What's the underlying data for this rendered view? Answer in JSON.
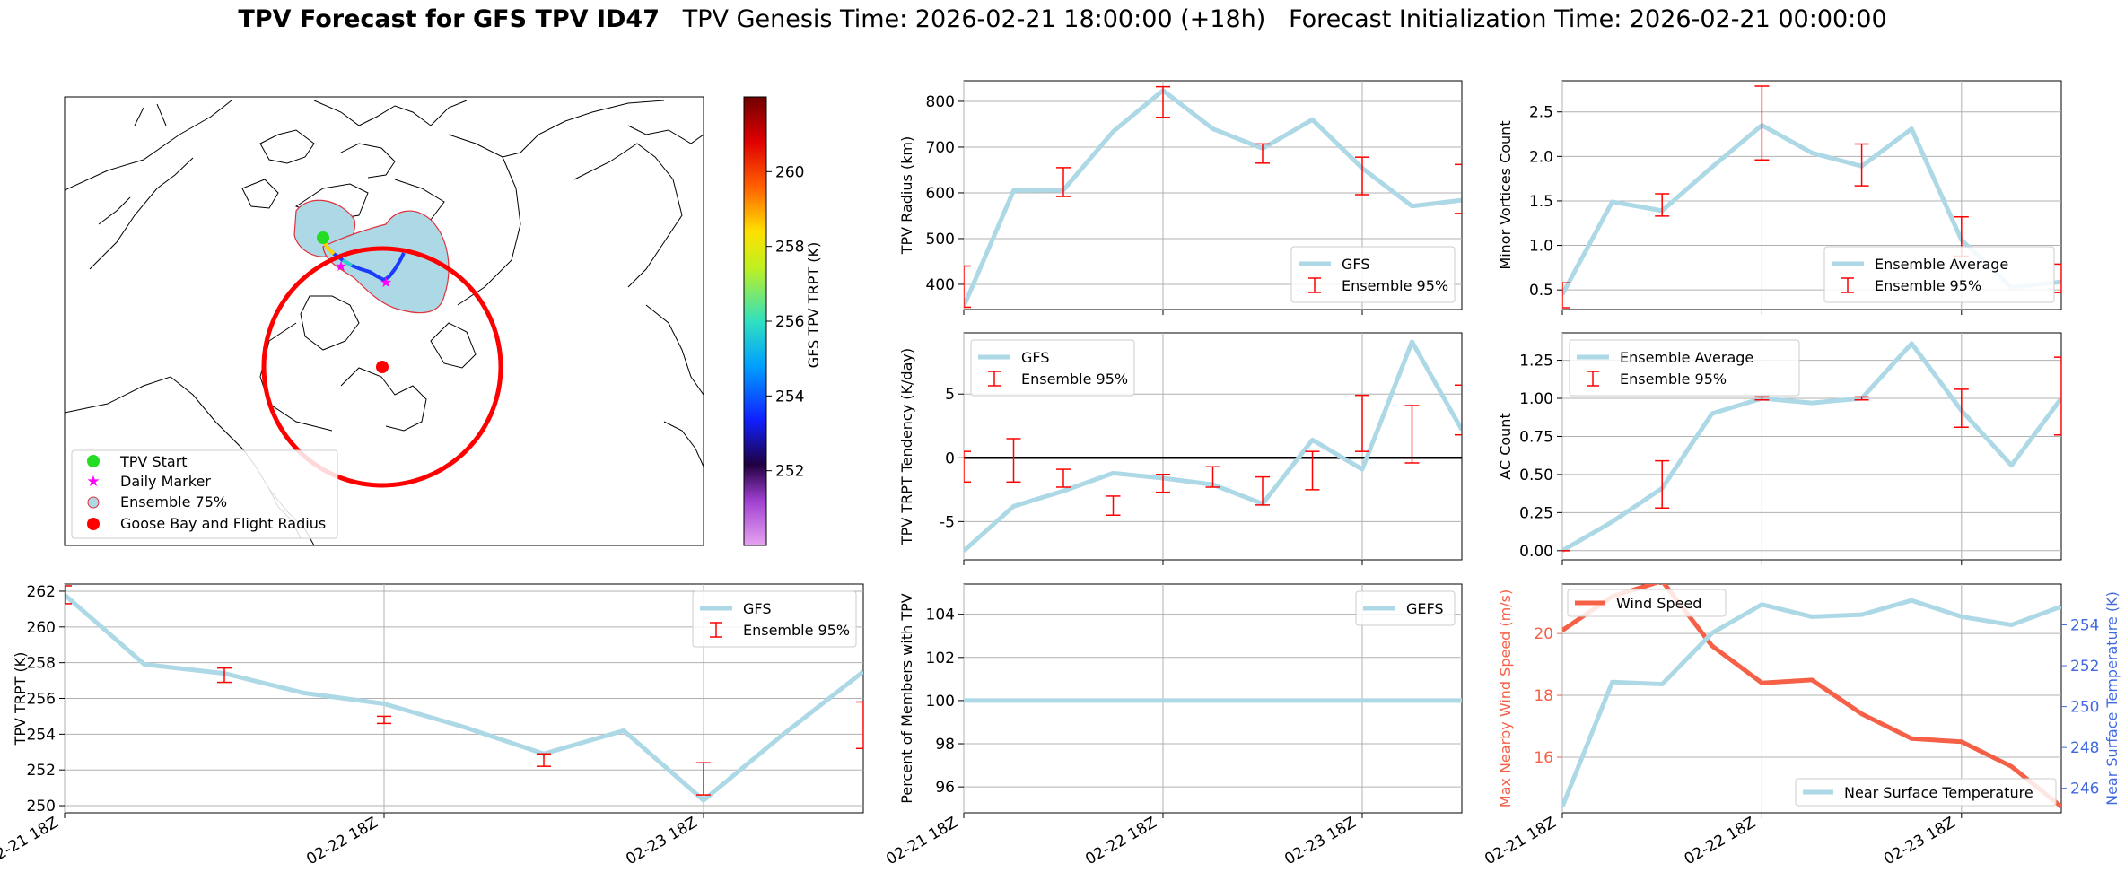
{
  "title": {
    "bold": "TPV Forecast for GFS TPV ID47",
    "genesis": "TPV Genesis Time: 2026-02-21 18:00:00 (+18h)",
    "init": "Forecast Initialization Time: 2026-02-21 00:00:00"
  },
  "map": {
    "legend": [
      "TPV Start",
      "Daily Marker",
      "Ensemble 75%",
      "Goose Bay and Flight Radius"
    ],
    "colorbar": {
      "label": "GFS TPV TRPT (K)",
      "ticks": [
        252,
        254,
        256,
        258,
        260
      ],
      "range": [
        250,
        262
      ]
    },
    "colors": {
      "start": "#22dd22",
      "daily": "#ff00ff",
      "ensemble_fill": "#add8e6",
      "ensemble_edge": "#e0303a",
      "goose_bay": "#ff0000"
    }
  },
  "x_ticks": [
    "02-21 18Z",
    "02-22 18Z",
    "02-23 18Z"
  ],
  "colors": {
    "gfs": "#add8e6",
    "err": "#ff0000",
    "wind": "#f56047",
    "temp_axis": "#4169e1"
  },
  "chart_data": [
    {
      "id": "trpt",
      "type": "line",
      "ylabel": "TPV TRPT (K)",
      "ylim": [
        249.6,
        262.4
      ],
      "yticks": [
        250,
        252,
        254,
        256,
        258,
        260,
        262
      ],
      "series": [
        {
          "name": "GFS",
          "x": [
            0,
            0.25,
            0.5,
            0.75,
            1,
            1.25,
            1.5,
            1.75,
            2,
            2.25,
            2.5
          ],
          "values": [
            261.8,
            257.9,
            257.4,
            256.3,
            255.7,
            254.4,
            252.9,
            254.2,
            250.3,
            254.0,
            257.5
          ]
        },
        {
          "name": "Ensemble 95%",
          "type": "errorbar",
          "x": [
            0,
            0.5,
            1,
            1.5,
            2,
            2.5
          ],
          "low": [
            261.3,
            256.9,
            254.6,
            252.2,
            250.6,
            253.2
          ],
          "high": [
            262.3,
            257.7,
            255.0,
            252.9,
            252.4,
            255.8
          ]
        }
      ]
    },
    {
      "id": "radius",
      "type": "line",
      "ylabel": "TPV Radius (km)",
      "ylim": [
        345,
        845
      ],
      "yticks": [
        400,
        500,
        600,
        700,
        800
      ],
      "series": [
        {
          "name": "GFS",
          "x": [
            0,
            0.25,
            0.5,
            0.75,
            1,
            1.25,
            1.5,
            1.75,
            2,
            2.25,
            2.5
          ],
          "values": [
            352,
            605,
            606,
            734,
            824,
            740,
            697,
            760,
            654,
            571,
            584
          ]
        },
        {
          "name": "Ensemble 95%",
          "type": "errorbar",
          "x": [
            0,
            0.5,
            1,
            1.5,
            2,
            2.5
          ],
          "low": [
            350,
            592,
            765,
            665,
            596,
            555
          ],
          "high": [
            440,
            655,
            832,
            707,
            678,
            662
          ]
        }
      ]
    },
    {
      "id": "tendency",
      "type": "line",
      "ylabel": "TPV TRPT Tendency (K/day)",
      "ylim": [
        -8,
        9.8
      ],
      "yticks": [
        -5,
        0,
        5
      ],
      "zero_line": true,
      "series": [
        {
          "name": "GFS",
          "x": [
            0,
            0.25,
            0.5,
            0.75,
            1,
            1.25,
            1.5,
            1.75,
            2,
            2.25,
            2.5
          ],
          "values": [
            -7.3,
            -3.8,
            -2.6,
            -1.2,
            -1.6,
            -2.1,
            -3.6,
            1.4,
            -0.9,
            9.1,
            2.2
          ]
        },
        {
          "name": "Ensemble 95%",
          "type": "errorbar",
          "x": [
            0,
            0.25,
            0.5,
            0.75,
            1,
            1.25,
            1.5,
            1.75,
            2,
            2.25,
            2.5
          ],
          "low": [
            -1.9,
            -1.9,
            -2.3,
            -4.5,
            -2.7,
            -2.3,
            -3.7,
            -2.5,
            0.5,
            -0.4,
            1.8
          ],
          "high": [
            0.5,
            1.5,
            -0.9,
            -3.0,
            -1.3,
            -0.7,
            -1.5,
            0.5,
            4.9,
            4.1,
            5.7
          ]
        }
      ]
    },
    {
      "id": "percent",
      "type": "line",
      "ylabel": "Percent of Members with TPV",
      "ylim": [
        94.8,
        105.4
      ],
      "yticks": [
        96,
        98,
        100,
        102,
        104
      ],
      "series": [
        {
          "name": "GEFS",
          "x": [
            0,
            2.5
          ],
          "values": [
            100,
            100
          ]
        }
      ]
    },
    {
      "id": "minor",
      "type": "line",
      "ylabel": "Minor Vortices Count",
      "ylim": [
        0.28,
        2.85
      ],
      "yticks": [
        0.5,
        1.0,
        1.5,
        2.0,
        2.5
      ],
      "series": [
        {
          "name": "Ensemble Average",
          "x": [
            0,
            0.25,
            0.5,
            0.75,
            1,
            1.25,
            1.5,
            1.75,
            2,
            2.25,
            2.5
          ],
          "values": [
            0.45,
            1.49,
            1.39,
            1.88,
            2.35,
            2.04,
            1.89,
            2.31,
            1.06,
            0.53,
            0.59
          ]
        },
        {
          "name": "Ensemble 95%",
          "type": "errorbar",
          "x": [
            0,
            0.5,
            1,
            1.5,
            2,
            2.5
          ],
          "low": [
            0.3,
            1.33,
            1.96,
            1.67,
            0.88,
            0.47
          ],
          "high": [
            0.58,
            1.58,
            2.79,
            2.14,
            1.32,
            0.79
          ]
        }
      ]
    },
    {
      "id": "ac",
      "type": "line",
      "ylabel": "AC Count",
      "ylim": [
        -0.06,
        1.43
      ],
      "yticks": [
        0.0,
        0.25,
        0.5,
        0.75,
        1.0,
        1.25
      ],
      "series": [
        {
          "name": "Ensemble Average",
          "x": [
            0,
            0.25,
            0.5,
            0.75,
            1,
            1.25,
            1.5,
            1.75,
            2,
            2.25,
            2.5
          ],
          "values": [
            0.0,
            0.19,
            0.41,
            0.9,
            1.0,
            0.97,
            1.0,
            1.36,
            0.92,
            0.56,
            1.0
          ]
        },
        {
          "name": "Ensemble 95%",
          "type": "errorbar",
          "x": [
            0,
            0.5,
            1,
            1.5,
            2,
            2.5
          ],
          "low": [
            0.0,
            0.28,
            0.99,
            0.99,
            0.81,
            0.76
          ],
          "high": [
            0.0,
            0.59,
            1.01,
            1.01,
            1.06,
            1.27
          ]
        }
      ]
    },
    {
      "id": "wind",
      "type": "line",
      "ylabel": "Max Nearby Wind Speed (m/s)",
      "ylim": [
        14.2,
        21.6
      ],
      "yticks": [
        16,
        18,
        20
      ],
      "ylabel2": "Near Surface Temperature (K)",
      "ylim2": [
        244.8,
        256.0
      ],
      "yticks2": [
        246,
        248,
        250,
        252,
        254
      ],
      "series": [
        {
          "name": "Wind Speed",
          "axis": "left",
          "x": [
            0,
            0.25,
            0.5,
            0.75,
            1,
            1.25,
            1.5,
            1.75,
            2,
            2.25,
            2.5
          ],
          "values": [
            20.1,
            21.2,
            21.7,
            19.6,
            18.4,
            18.5,
            17.4,
            16.6,
            16.5,
            15.7,
            14.4
          ]
        },
        {
          "name": "Near Surface Temperature",
          "axis": "right",
          "x": [
            0,
            0.25,
            0.5,
            0.75,
            1,
            1.25,
            1.5,
            1.75,
            2,
            2.25,
            2.5
          ],
          "values": [
            245.1,
            251.2,
            251.1,
            253.6,
            255.0,
            254.4,
            254.5,
            255.2,
            254.4,
            254.0,
            254.9
          ]
        }
      ]
    }
  ]
}
